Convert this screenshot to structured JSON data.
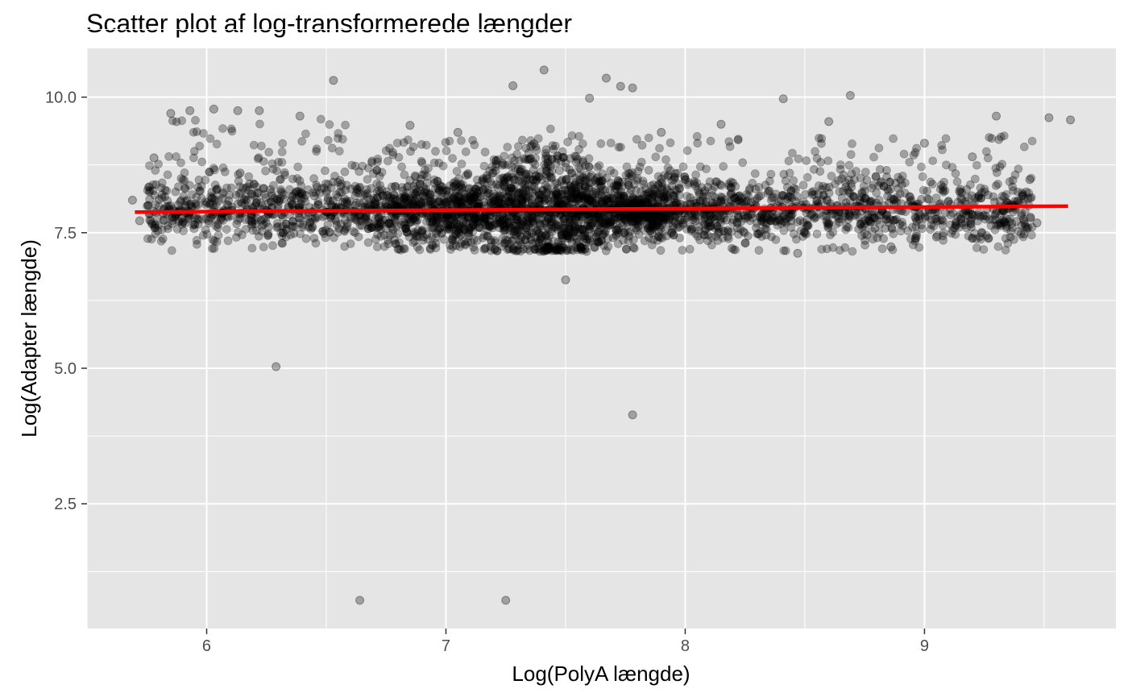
{
  "chart_data": {
    "type": "scatter",
    "title": "Scatter plot af log-transformerede længder",
    "xlabel": "Log(PolyA længde)",
    "ylabel": "Log(Adapter længde)",
    "xlim": [
      5.5,
      9.8
    ],
    "ylim": [
      0.2,
      10.9
    ],
    "x_ticks": [
      6,
      7,
      8,
      9
    ],
    "x_tick_labels": [
      "6",
      "7",
      "8",
      "9"
    ],
    "y_ticks": [
      2.5,
      5.0,
      7.5,
      10.0
    ],
    "y_tick_labels": [
      "2.5",
      "5.0",
      "7.5",
      "10.0"
    ],
    "grid": true,
    "point_color": "#000000",
    "point_opacity": 0.3,
    "panel_background": "#e5e5e5",
    "grid_color": "#ffffff",
    "fit_line": {
      "color": "#ff0000",
      "x": [
        5.7,
        9.6
      ],
      "y": [
        7.88,
        7.99
      ]
    },
    "dense_band": {
      "x_range": [
        5.75,
        9.45
      ],
      "center_y": 7.9,
      "spread": 0.3
    },
    "points": [
      {
        "x": 5.69,
        "y": 8.1
      },
      {
        "x": 5.72,
        "y": 7.72
      },
      {
        "x": 5.78,
        "y": 8.88
      },
      {
        "x": 5.85,
        "y": 9.7
      },
      {
        "x": 5.93,
        "y": 9.75
      },
      {
        "x": 6.03,
        "y": 9.78
      },
      {
        "x": 6.13,
        "y": 9.75
      },
      {
        "x": 6.22,
        "y": 9.75
      },
      {
        "x": 6.39,
        "y": 9.65
      },
      {
        "x": 6.53,
        "y": 10.31
      },
      {
        "x": 6.29,
        "y": 5.03
      },
      {
        "x": 6.64,
        "y": 0.72
      },
      {
        "x": 7.25,
        "y": 0.72
      },
      {
        "x": 7.28,
        "y": 10.21
      },
      {
        "x": 7.41,
        "y": 10.5
      },
      {
        "x": 7.5,
        "y": 6.63
      },
      {
        "x": 7.67,
        "y": 10.35
      },
      {
        "x": 7.78,
        "y": 10.17
      },
      {
        "x": 7.73,
        "y": 10.2
      },
      {
        "x": 7.78,
        "y": 4.14
      },
      {
        "x": 7.6,
        "y": 9.98
      },
      {
        "x": 8.41,
        "y": 9.97
      },
      {
        "x": 8.69,
        "y": 10.03
      },
      {
        "x": 9.3,
        "y": 9.65
      },
      {
        "x": 9.52,
        "y": 9.62
      },
      {
        "x": 9.61,
        "y": 9.58
      },
      {
        "x": 9.44,
        "y": 8.48
      },
      {
        "x": 9.47,
        "y": 7.68
      },
      {
        "x": 8.47,
        "y": 7.12
      },
      {
        "x": 8.86,
        "y": 7.24
      },
      {
        "x": 9.05,
        "y": 7.42
      },
      {
        "x": 6.14,
        "y": 8.6
      },
      {
        "x": 6.45,
        "y": 8.18
      },
      {
        "x": 6.85,
        "y": 9.48
      },
      {
        "x": 7.05,
        "y": 9.35
      },
      {
        "x": 7.9,
        "y": 9.35
      },
      {
        "x": 8.15,
        "y": 9.5
      },
      {
        "x": 8.6,
        "y": 9.55
      },
      {
        "x": 9.0,
        "y": 9.15
      },
      {
        "x": 9.2,
        "y": 8.9
      }
    ]
  }
}
